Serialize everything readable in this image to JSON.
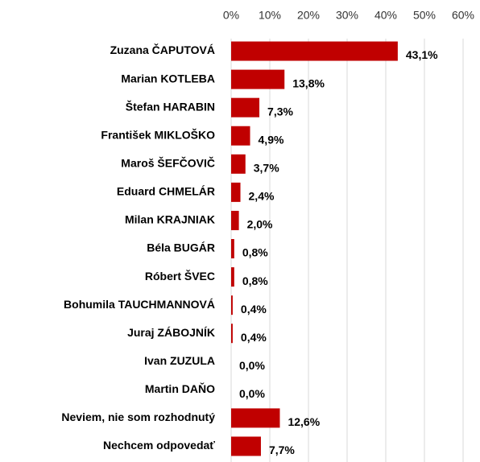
{
  "chart_data": {
    "type": "bar",
    "orientation": "horizontal",
    "categories": [
      "Zuzana ČAPUTOVÁ",
      "Marian KOTLEBA",
      "Štefan HARABIN",
      "František MIKLOŠKO",
      "Maroš ŠEFČOVIČ",
      "Eduard CHMELÁR",
      "Milan KRAJNIAK",
      "Béla BUGÁR",
      "Róbert ŠVEC",
      "Bohumila TAUCHMANNOVÁ",
      "Juraj ZÁBOJNÍK",
      "Ivan ZUZULA",
      "Martin DAŇO",
      "Neviem, nie som rozhodnutý",
      "Nechcem odpovedať"
    ],
    "values": [
      43.1,
      13.8,
      7.3,
      4.9,
      3.7,
      2.4,
      2.0,
      0.8,
      0.8,
      0.4,
      0.4,
      0.0,
      0.0,
      12.6,
      7.7
    ],
    "value_labels": [
      "43,1%",
      "13,8%",
      "7,3%",
      "4,9%",
      "3,7%",
      "2,4%",
      "2,0%",
      "0,8%",
      "0,8%",
      "0,4%",
      "0,4%",
      "0,0%",
      "0,0%",
      "12,6%",
      "7,7%"
    ],
    "color": "#c00000",
    "xlim": [
      0,
      60
    ],
    "xticks": [
      {
        "value": 0,
        "label": "0%"
      },
      {
        "value": 10,
        "label": "10%"
      },
      {
        "value": 20,
        "label": "20%"
      },
      {
        "value": 30,
        "label": "30%"
      },
      {
        "value": 40,
        "label": "40%"
      },
      {
        "value": 50,
        "label": "50%"
      },
      {
        "value": 60,
        "label": "60%"
      }
    ],
    "grid": true
  }
}
